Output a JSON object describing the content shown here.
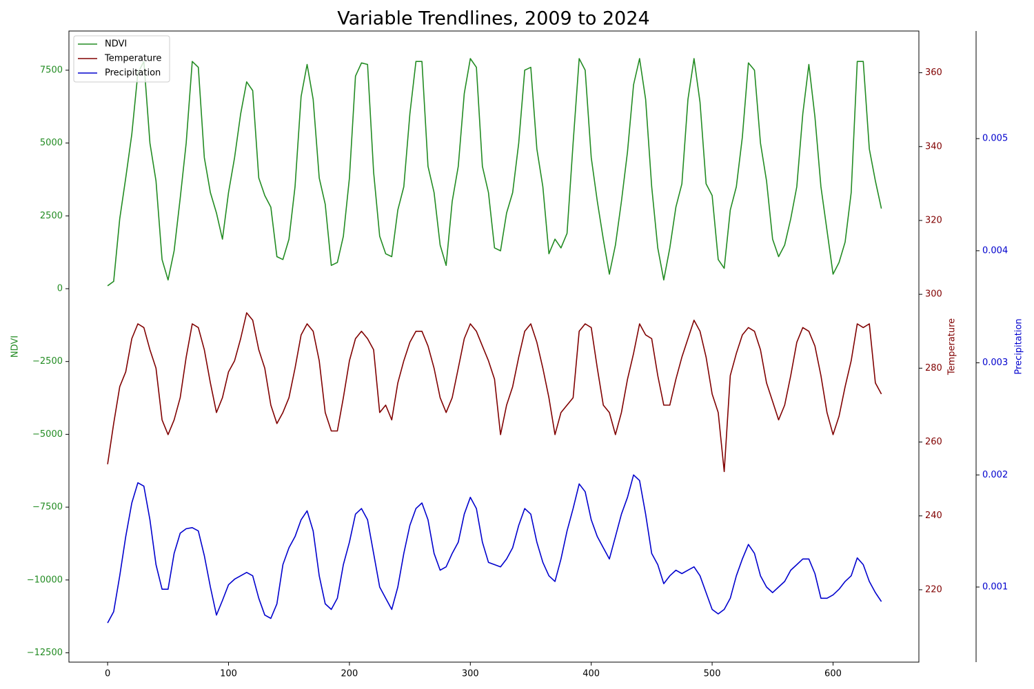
{
  "chart_data": {
    "type": "line",
    "title": "Variable Trendlines, 2009 to 2024",
    "y_label": "NDVI",
    "y2_label": "Temperature",
    "y3_label": "Precipitation",
    "legend": "upper left",
    "xlim": [
      -32,
      671
    ],
    "xticks": [
      0,
      100,
      200,
      300,
      400,
      500,
      600
    ],
    "ylim": [
      -12820,
      8846
    ],
    "yticks": [
      {
        "value": -12500,
        "label": "−12500"
      },
      {
        "value": -10000,
        "label": "−10000"
      },
      {
        "value": -7500,
        "label": "−7500"
      },
      {
        "value": -5000,
        "label": "−5000"
      },
      {
        "value": -2500,
        "label": "−2500"
      },
      0,
      2500,
      5000,
      7500
    ],
    "y2lim": [
      200.4,
      371.3
    ],
    "y2ticks": [
      220,
      240,
      260,
      280,
      300,
      320,
      340,
      360
    ],
    "y3lim": [
      0.00033,
      0.00596
    ],
    "y3ticks": [
      0.001,
      0.002,
      0.003,
      0.004,
      0.005
    ],
    "x": [
      0,
      5,
      10,
      15,
      20,
      25,
      30,
      35,
      40,
      45,
      50,
      55,
      60,
      65,
      70,
      75,
      80,
      85,
      90,
      95,
      100,
      105,
      110,
      115,
      120,
      125,
      130,
      135,
      140,
      145,
      150,
      155,
      160,
      165,
      170,
      175,
      180,
      185,
      190,
      195,
      200,
      205,
      210,
      215,
      220,
      225,
      230,
      235,
      240,
      245,
      250,
      255,
      260,
      265,
      270,
      275,
      280,
      285,
      290,
      295,
      300,
      305,
      310,
      315,
      320,
      325,
      330,
      335,
      340,
      345,
      350,
      355,
      360,
      365,
      370,
      375,
      380,
      385,
      390,
      395,
      400,
      405,
      410,
      415,
      420,
      425,
      430,
      435,
      440,
      445,
      450,
      455,
      460,
      465,
      470,
      475,
      480,
      485,
      490,
      495,
      500,
      505,
      510,
      515,
      520,
      525,
      530,
      535,
      540,
      545,
      550,
      555,
      560,
      565,
      570,
      575,
      580,
      585,
      590,
      595,
      600,
      605,
      610,
      615,
      620,
      625,
      630,
      635,
      640
    ],
    "series": [
      {
        "name": "NDVI",
        "color": "#228b22",
        "axis": "y",
        "values": [
          100,
          250,
          2400,
          3800,
          5300,
          7400,
          7800,
          5000,
          3700,
          1000,
          300,
          1300,
          3100,
          5000,
          7800,
          7600,
          4500,
          3300,
          2600,
          1700,
          3300,
          4500,
          6000,
          7100,
          6800,
          3800,
          3200,
          2800,
          1100,
          1000,
          1700,
          3500,
          6600,
          7700,
          6500,
          3800,
          2900,
          800,
          900,
          1800,
          3800,
          7300,
          7750,
          7700,
          4000,
          1800,
          1200,
          1100,
          2700,
          3500,
          6000,
          7800,
          7800,
          4200,
          3300,
          1500,
          800,
          3000,
          4200,
          6700,
          7900,
          7600,
          4200,
          3300,
          1400,
          1300,
          2600,
          3300,
          5000,
          7500,
          7600,
          4800,
          3500,
          1200,
          1700,
          1400,
          1900,
          5000,
          7900,
          7500,
          4500,
          3000,
          1700,
          500,
          1500,
          3000,
          4700,
          7000,
          7900,
          6500,
          3500,
          1400,
          300,
          1400,
          2800,
          3600,
          6500,
          7900,
          6400,
          3600,
          3200,
          1000,
          700,
          2700,
          3500,
          5200,
          7750,
          7500,
          5000,
          3700,
          1700,
          1100,
          1500,
          2400,
          3500,
          6000,
          7700,
          5900,
          3500,
          2000,
          500,
          900,
          1600,
          3300,
          7800,
          7800,
          4800,
          3700,
          2750
        ]
      },
      {
        "name": "Temperature",
        "color": "#800000",
        "axis": "y2",
        "values": [
          254,
          265,
          275,
          279,
          288,
          292,
          291,
          285,
          280,
          266,
          262,
          266,
          272,
          283,
          292,
          291,
          285,
          276,
          268,
          272,
          279,
          282,
          288,
          295,
          293,
          285,
          280,
          270,
          265,
          268,
          272,
          280,
          289,
          292,
          290,
          282,
          268,
          263,
          263,
          272,
          282,
          288,
          290,
          288,
          285,
          268,
          270,
          266,
          276,
          282,
          287,
          290,
          290,
          286,
          280,
          272,
          268,
          272,
          280,
          288,
          292,
          290,
          286,
          282,
          277,
          262,
          270,
          275,
          283,
          290,
          292,
          287,
          280,
          272,
          262,
          268,
          270,
          272,
          290,
          292,
          291,
          280,
          270,
          268,
          262,
          268,
          277,
          284,
          292,
          289,
          288,
          278,
          270,
          270,
          277,
          283,
          288,
          293,
          290,
          283,
          273,
          268,
          252,
          278,
          284,
          289,
          291,
          290,
          285,
          276,
          271,
          266,
          270,
          278,
          287,
          291,
          290,
          286,
          278,
          268,
          262,
          267,
          275,
          282,
          292,
          291,
          292,
          276,
          273
        ]
      },
      {
        "name": "Precipitation",
        "color": "#0000cd",
        "axis": "y3",
        "values": [
          0.00068,
          0.00078,
          0.0011,
          0.00145,
          0.00175,
          0.00193,
          0.0019,
          0.0016,
          0.0012,
          0.00098,
          0.00098,
          0.0013,
          0.00148,
          0.00152,
          0.00153,
          0.0015,
          0.00128,
          0.001,
          0.00075,
          0.00088,
          0.00102,
          0.00107,
          0.0011,
          0.00113,
          0.0011,
          0.0009,
          0.00075,
          0.00072,
          0.00085,
          0.0012,
          0.00135,
          0.00145,
          0.0016,
          0.00168,
          0.0015,
          0.0011,
          0.00085,
          0.0008,
          0.0009,
          0.0012,
          0.0014,
          0.00165,
          0.0017,
          0.0016,
          0.0013,
          0.001,
          0.0009,
          0.0008,
          0.001,
          0.0013,
          0.00155,
          0.0017,
          0.00175,
          0.0016,
          0.0013,
          0.00115,
          0.00118,
          0.0013,
          0.0014,
          0.00165,
          0.0018,
          0.0017,
          0.0014,
          0.00122,
          0.0012,
          0.00118,
          0.00125,
          0.00135,
          0.00155,
          0.0017,
          0.00165,
          0.0014,
          0.00122,
          0.0011,
          0.00105,
          0.00125,
          0.0015,
          0.0017,
          0.00192,
          0.00185,
          0.0016,
          0.00145,
          0.00135,
          0.00125,
          0.00145,
          0.00165,
          0.0018,
          0.002,
          0.00195,
          0.00165,
          0.0013,
          0.0012,
          0.00103,
          0.0011,
          0.00115,
          0.00112,
          0.00115,
          0.00118,
          0.0011,
          0.00095,
          0.0008,
          0.00076,
          0.0008,
          0.0009,
          0.0011,
          0.00125,
          0.00138,
          0.0013,
          0.0011,
          0.001,
          0.00095,
          0.001,
          0.00105,
          0.00115,
          0.0012,
          0.00125,
          0.00125,
          0.00112,
          0.0009,
          0.0009,
          0.00093,
          0.00098,
          0.00105,
          0.0011,
          0.00126,
          0.0012,
          0.00105,
          0.00095,
          0.00087
        ]
      }
    ]
  }
}
